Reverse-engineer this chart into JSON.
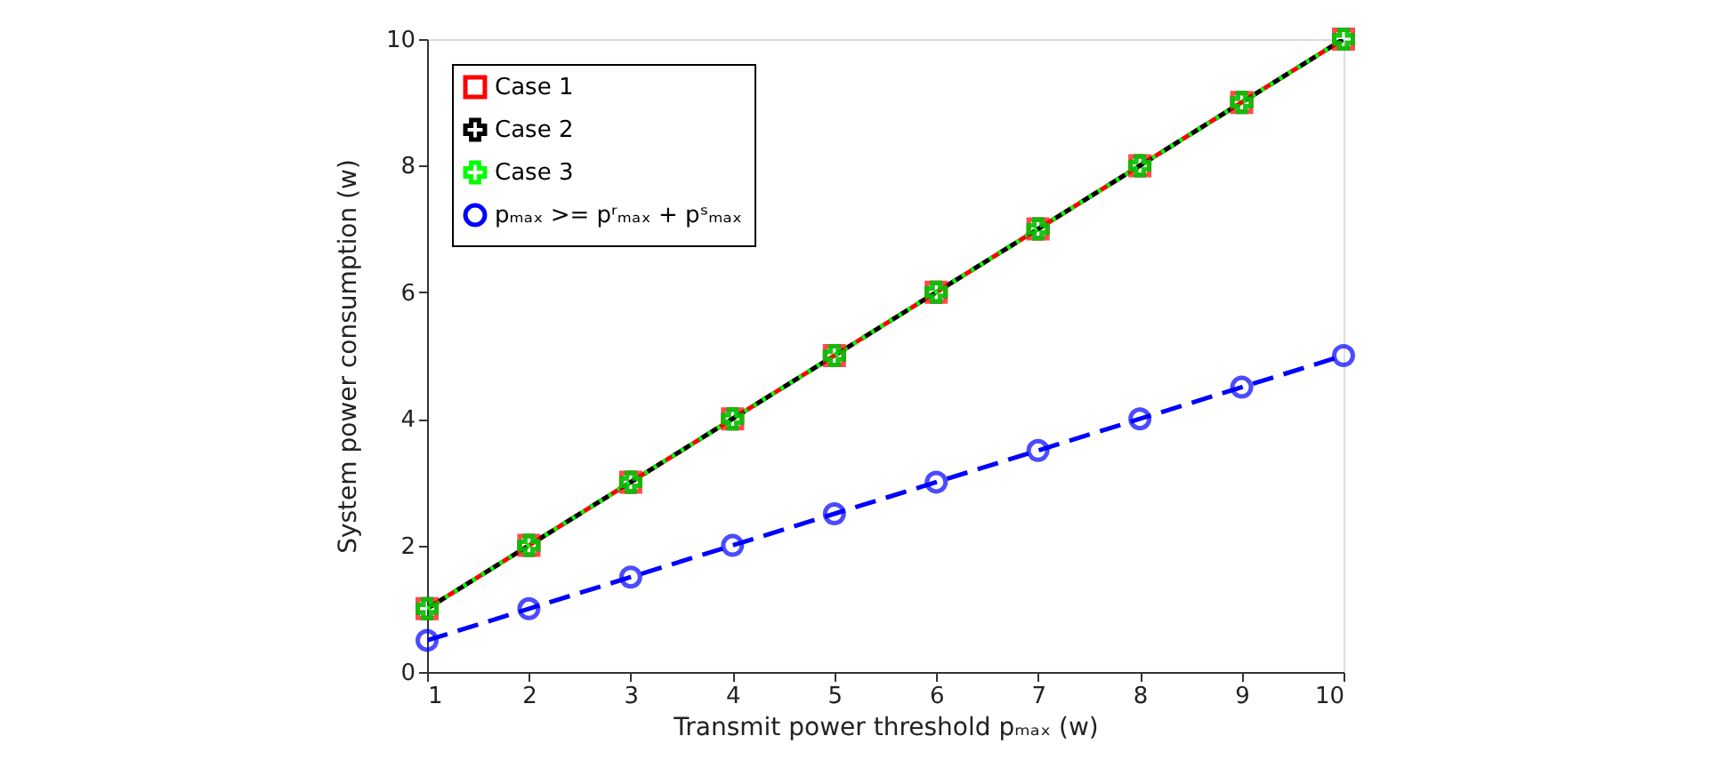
{
  "chart_data": {
    "type": "line",
    "xlabel": "Transmit power threshold pₘₐₓ (w)",
    "ylabel": "System power consumption (w)",
    "x": [
      1,
      2,
      3,
      4,
      5,
      6,
      7,
      8,
      9,
      10
    ],
    "series": [
      {
        "name": "Case 1",
        "color": "#ff0000",
        "marker": "square",
        "line_style": "solid",
        "values": [
          1,
          2,
          3,
          4,
          5,
          6,
          7,
          8,
          9,
          10
        ]
      },
      {
        "name": "Case 2",
        "color": "#000000",
        "marker": "cross",
        "line_style": "dashed",
        "values": [
          1,
          2,
          3,
          4,
          5,
          6,
          7,
          8,
          9,
          10
        ]
      },
      {
        "name": "Case 3",
        "color": "#00ff00",
        "marker": "cross",
        "line_style": "dotted",
        "values": [
          1,
          2,
          3,
          4,
          5,
          6,
          7,
          8,
          9,
          10
        ]
      },
      {
        "name": "pₘₐₓ >= pʳₘₐₓ + pˢₘₐₓ",
        "color": "#0000ff",
        "marker": "circle",
        "line_style": "dashed",
        "values": [
          0.5,
          1,
          1.5,
          2,
          2.5,
          3,
          3.5,
          4,
          4.5,
          5
        ]
      }
    ],
    "xlim": [
      1,
      10
    ],
    "xticks": [
      1,
      2,
      3,
      4,
      5,
      6,
      7,
      8,
      9,
      10
    ],
    "ylim": [
      0,
      10
    ],
    "yticks": [
      0,
      2,
      4,
      6,
      8,
      10
    ],
    "grid": false,
    "legend": "top left"
  }
}
